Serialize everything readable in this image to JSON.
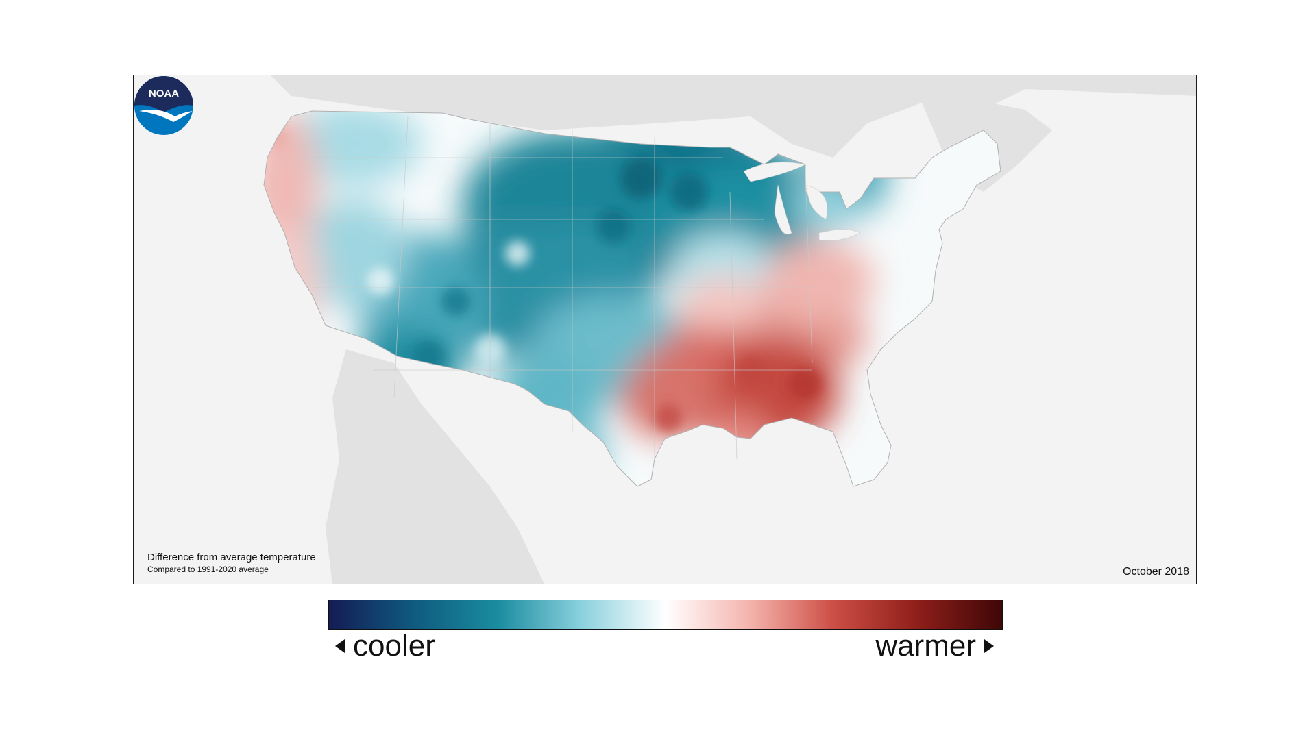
{
  "map": {
    "caption_title": "Difference from average temperature",
    "caption_subtitle": "Compared to 1991-2020 average",
    "date_label": "October 2018",
    "logo_text": "NOAA",
    "colors": {
      "background_land": "#e2e2e2",
      "ocean": "#f3f3f3",
      "cool_strong": "#0d6e86",
      "cool_mid": "#4aa8bb",
      "cool_light": "#bfe6ee",
      "neutral": "#f7fbfc",
      "warm_light": "#f4c9c6",
      "warm_mid": "#de7a73",
      "warm_strong": "#b83b36"
    }
  },
  "legend": {
    "cooler_label": "cooler",
    "warmer_label": "warmer",
    "stops": [
      "#141c55",
      "#0f5a7e",
      "#1a8c9f",
      "#8bd1de",
      "#ffffff",
      "#f5b3ad",
      "#cc4e45",
      "#8e1e1a",
      "#3f0707"
    ]
  }
}
